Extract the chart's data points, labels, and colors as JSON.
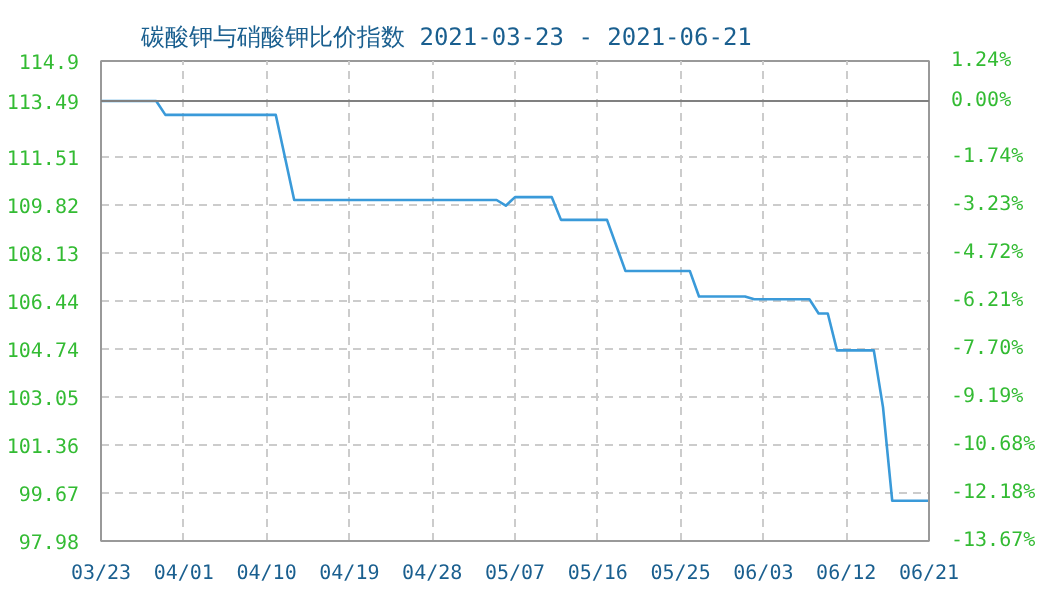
{
  "chart_data": {
    "type": "line",
    "title": "碳酸钾与硝酸钾比价指数 2021-03-23 - 2021-06-21",
    "x": [
      "2021-03-23",
      "2021-03-29",
      "2021-03-30",
      "2021-04-11",
      "2021-04-13",
      "2021-05-05",
      "2021-05-06",
      "2021-05-07",
      "2021-05-11",
      "2021-05-12",
      "2021-05-17",
      "2021-05-19",
      "2021-05-26",
      "2021-05-27",
      "2021-06-01",
      "2021-06-02",
      "2021-06-08",
      "2021-06-09",
      "2021-06-10",
      "2021-06-11",
      "2021-06-15",
      "2021-06-16",
      "2021-06-17",
      "2021-06-21"
    ],
    "series": [
      {
        "color": "#3a9ad9",
        "values": [
          113.49,
          113.49,
          113.0,
          113.0,
          110.0,
          110.0,
          109.8,
          110.1,
          110.1,
          109.3,
          109.3,
          107.5,
          107.5,
          106.6,
          106.6,
          106.5,
          106.5,
          106.0,
          106.0,
          104.7,
          104.7,
          102.7,
          99.4,
          99.4
        ]
      }
    ],
    "xlim": [
      "2021-03-23",
      "2021-06-21"
    ],
    "xticks": [
      {
        "value": "2021-03-23",
        "label": "03/23"
      },
      {
        "value": "2021-04-01",
        "label": "04/01"
      },
      {
        "value": "2021-04-10",
        "label": "04/10"
      },
      {
        "value": "2021-04-19",
        "label": "04/19"
      },
      {
        "value": "2021-04-28",
        "label": "04/28"
      },
      {
        "value": "2021-05-07",
        "label": "05/07"
      },
      {
        "value": "2021-05-16",
        "label": "05/16"
      },
      {
        "value": "2021-05-25",
        "label": "05/25"
      },
      {
        "value": "2021-06-03",
        "label": "06/03"
      },
      {
        "value": "2021-06-12",
        "label": "06/12"
      },
      {
        "value": "2021-06-21",
        "label": "06/21"
      }
    ],
    "ylim": [
      97.98,
      114.9
    ],
    "yticks": [
      97.98,
      99.67,
      101.36,
      103.05,
      104.74,
      106.44,
      108.13,
      109.82,
      111.51,
      113.49,
      114.9
    ],
    "y2lim": [
      -13.67,
      1.24
    ],
    "y2ticks": [
      {
        "value": -13.67,
        "label": "-13.67%"
      },
      {
        "value": -12.18,
        "label": "-12.18%"
      },
      {
        "value": -10.68,
        "label": "-10.68%"
      },
      {
        "value": -9.19,
        "label": "-9.19%"
      },
      {
        "value": -7.7,
        "label": "-7.70%"
      },
      {
        "value": -6.21,
        "label": "-6.21%"
      },
      {
        "value": -4.72,
        "label": "-4.72%"
      },
      {
        "value": -3.23,
        "label": "-3.23%"
      },
      {
        "value": -1.74,
        "label": "-1.74%"
      },
      {
        "value": 0,
        "label": "0.00%"
      },
      {
        "value": 1.24,
        "label": "1.24%"
      }
    ],
    "ref_lines": [
      {
        "axis": "y",
        "value": 113.49,
        "color": "#808080"
      }
    ],
    "grid": true,
    "marker": "none",
    "line_style": "solid"
  }
}
